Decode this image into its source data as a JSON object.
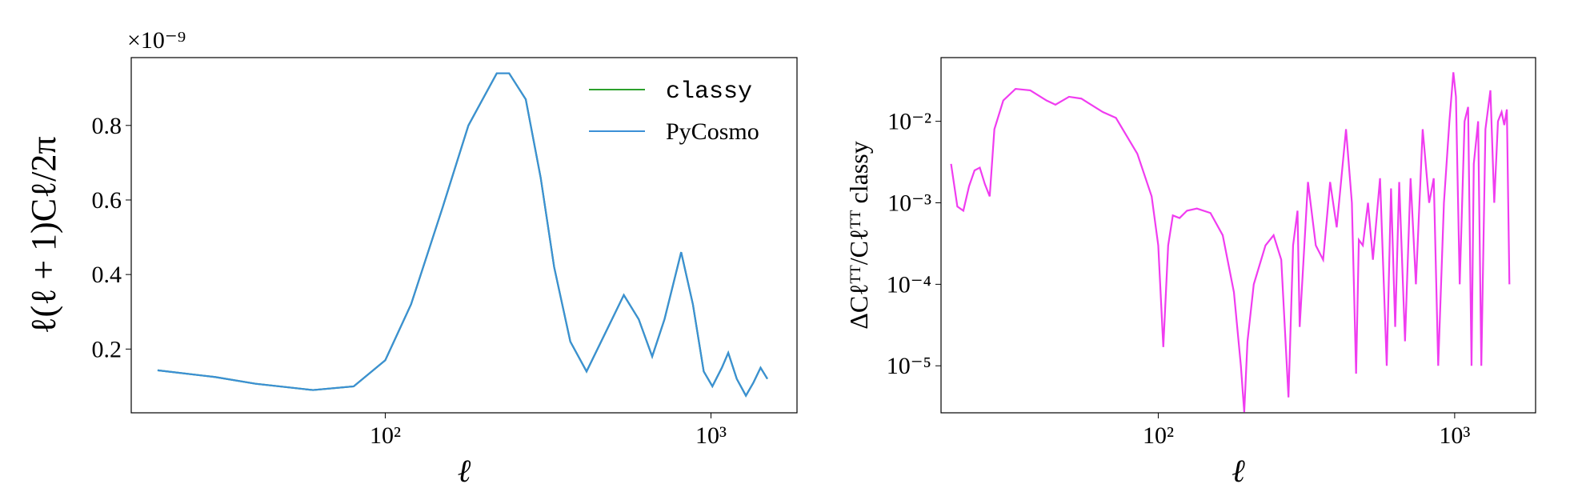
{
  "chart_data": [
    {
      "type": "line",
      "xscale": "log",
      "yscale": "linear",
      "offset_text": "×10⁻⁹",
      "xlabel": "ℓ",
      "ylabel": "ℓ(ℓ + 1)Cℓ/2π",
      "xlim": [
        16.6,
        1837
      ],
      "ylim": [
        0.029,
        0.982
      ],
      "xticks": [
        {
          "value": 100,
          "label": "10²"
        },
        {
          "value": 1000,
          "label": "10³"
        }
      ],
      "yticks": [
        0.2,
        0.4,
        0.6,
        0.8
      ],
      "legend": "upper right",
      "x": [
        20,
        30,
        40,
        60,
        80,
        100,
        120,
        150,
        180,
        220,
        240,
        270,
        300,
        330,
        370,
        415,
        460,
        540,
        600,
        660,
        720,
        810,
        880,
        950,
        1010,
        1080,
        1130,
        1200,
        1280,
        1350,
        1420,
        1490
      ],
      "series": [
        {
          "name": "classy",
          "color": "#2ca02c",
          "values": [
            0.143,
            0.125,
            0.107,
            0.09,
            0.1,
            0.17,
            0.32,
            0.58,
            0.8,
            0.94,
            0.94,
            0.87,
            0.66,
            0.42,
            0.22,
            0.14,
            0.22,
            0.345,
            0.28,
            0.18,
            0.28,
            0.46,
            0.32,
            0.14,
            0.1,
            0.15,
            0.19,
            0.12,
            0.075,
            0.11,
            0.15,
            0.12
          ]
        },
        {
          "name": "PyCosmo",
          "color": "#3b8fd6",
          "values": [
            0.143,
            0.125,
            0.107,
            0.09,
            0.1,
            0.17,
            0.32,
            0.58,
            0.8,
            0.94,
            0.94,
            0.87,
            0.66,
            0.42,
            0.22,
            0.14,
            0.22,
            0.345,
            0.28,
            0.18,
            0.28,
            0.46,
            0.32,
            0.14,
            0.1,
            0.15,
            0.19,
            0.12,
            0.075,
            0.11,
            0.15,
            0.12
          ]
        }
      ]
    },
    {
      "type": "line",
      "xscale": "log",
      "yscale": "log",
      "xlabel": "ℓ",
      "ylabel": "ΔCℓᵀᵀ/Cℓᵀᵀ classy",
      "xlim": [
        18.5,
        1875
      ],
      "ylim": [
        2.65e-06,
        0.0605
      ],
      "xticks": [
        {
          "value": 100,
          "label": "10²"
        },
        {
          "value": 1000,
          "label": "10³"
        }
      ],
      "yticks": [
        {
          "value": 1e-05,
          "label": "10⁻⁵"
        },
        {
          "value": 0.0001,
          "label": "10⁻⁴"
        },
        {
          "value": 0.001,
          "label": "10⁻³"
        },
        {
          "value": 0.01,
          "label": "10⁻²"
        }
      ],
      "x": [
        20,
        21,
        22,
        23,
        24,
        25,
        26,
        27,
        28,
        30,
        33,
        37,
        42,
        45,
        50,
        55,
        65,
        72,
        85,
        95,
        100,
        104,
        108,
        112,
        118,
        125,
        135,
        150,
        165,
        180,
        190,
        195,
        200,
        210,
        230,
        245,
        260,
        275,
        285,
        295,
        300,
        320,
        340,
        360,
        380,
        400,
        430,
        450,
        465,
        475,
        490,
        510,
        530,
        560,
        590,
        610,
        630,
        650,
        680,
        710,
        740,
        780,
        820,
        850,
        880,
        920,
        960,
        990,
        1010,
        1040,
        1080,
        1110,
        1140,
        1160,
        1200,
        1230,
        1270,
        1320,
        1360,
        1400,
        1440,
        1470,
        1500,
        1530
      ],
      "series": [
        {
          "color": "#f03cf0",
          "values": [
            0.003,
            0.0009,
            0.0008,
            0.0016,
            0.0025,
            0.0027,
            0.0017,
            0.0012,
            0.008,
            0.018,
            0.025,
            0.024,
            0.018,
            0.016,
            0.02,
            0.019,
            0.013,
            0.011,
            0.004,
            0.0012,
            0.0003,
            1.7e-05,
            0.0003,
            0.0007,
            0.00065,
            0.0008,
            0.00085,
            0.00075,
            0.0004,
            8e-05,
            1e-05,
            2.7e-06,
            2e-05,
            0.0001,
            0.0003,
            0.0004,
            0.0002,
            4.1e-06,
            0.0003,
            0.0008,
            3e-05,
            0.0018,
            0.0003,
            0.0002,
            0.0018,
            0.0005,
            0.008,
            0.001,
            8e-06,
            0.00035,
            0.0003,
            0.001,
            0.0002,
            0.002,
            1e-05,
            0.0015,
            3e-05,
            0.0018,
            2e-05,
            0.002,
            0.0001,
            0.008,
            0.001,
            0.002,
            1e-05,
            0.001,
            0.01,
            0.04,
            0.02,
            0.0001,
            0.01,
            0.015,
            1e-05,
            0.003,
            0.01,
            1e-05,
            0.008,
            0.024,
            0.001,
            0.01,
            0.013,
            0.009,
            0.014,
            0.0001
          ]
        }
      ]
    }
  ]
}
